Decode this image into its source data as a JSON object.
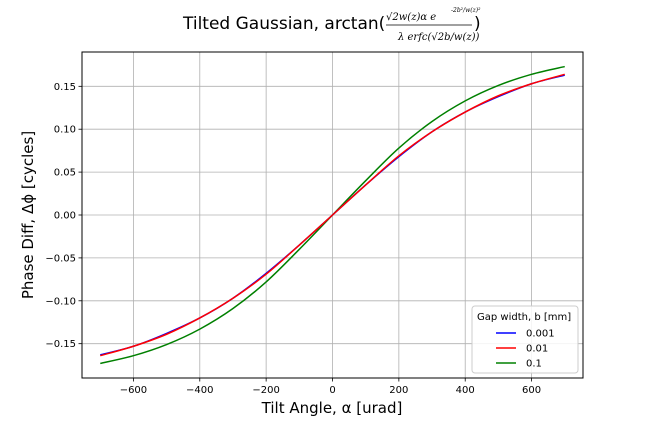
{
  "chart_data": {
    "type": "line",
    "title": {
      "prefix": "Tilted Gaussian, arctan(",
      "numerator": "√2w(z)α e",
      "exponent": "-2b²/w(z)²",
      "denominator": "λ erfc(√2b/w(z))",
      "suffix": ")"
    },
    "xlabel": "Tilt Angle, α [urad]",
    "ylabel": "Phase Diff, Δϕ [cycles]",
    "xlim": [
      -755,
      755
    ],
    "ylim": [
      -0.19,
      0.19
    ],
    "xticks": [
      -600,
      -400,
      -200,
      0,
      200,
      400,
      600
    ],
    "yticks": [
      -0.15,
      -0.1,
      -0.05,
      0.0,
      0.05,
      0.1,
      0.15
    ],
    "xtick_labels": [
      "−600",
      "−400",
      "−200",
      "0",
      "200",
      "400",
      "600"
    ],
    "ytick_labels": [
      "−0.15",
      "−0.10",
      "−0.05",
      "0.00",
      "0.05",
      "0.10",
      "0.15"
    ],
    "grid": true,
    "legend": {
      "title": "Gap width, b [mm]",
      "placement": "lower-right"
    },
    "x": [
      -700,
      -600,
      -500,
      -400,
      -300,
      -200,
      -100,
      0,
      100,
      200,
      300,
      400,
      500,
      600,
      700
    ],
    "series": [
      {
        "name": "0.001",
        "color": "#0000ff",
        "values": [
          -0.163,
          -0.153,
          -0.138,
          -0.12,
          -0.097,
          -0.068,
          -0.035,
          0.0,
          0.035,
          0.068,
          0.097,
          0.12,
          0.138,
          0.153,
          0.163
        ]
      },
      {
        "name": "0.01",
        "color": "#ff0000",
        "values": [
          -0.164,
          -0.153,
          -0.139,
          -0.12,
          -0.097,
          -0.069,
          -0.035,
          0.0,
          0.035,
          0.069,
          0.097,
          0.12,
          0.139,
          0.153,
          0.164
        ]
      },
      {
        "name": "0.1",
        "color": "#008000",
        "values": [
          -0.173,
          -0.164,
          -0.151,
          -0.133,
          -0.109,
          -0.078,
          -0.04,
          0.0,
          0.04,
          0.078,
          0.109,
          0.133,
          0.151,
          0.164,
          0.173
        ]
      }
    ]
  }
}
